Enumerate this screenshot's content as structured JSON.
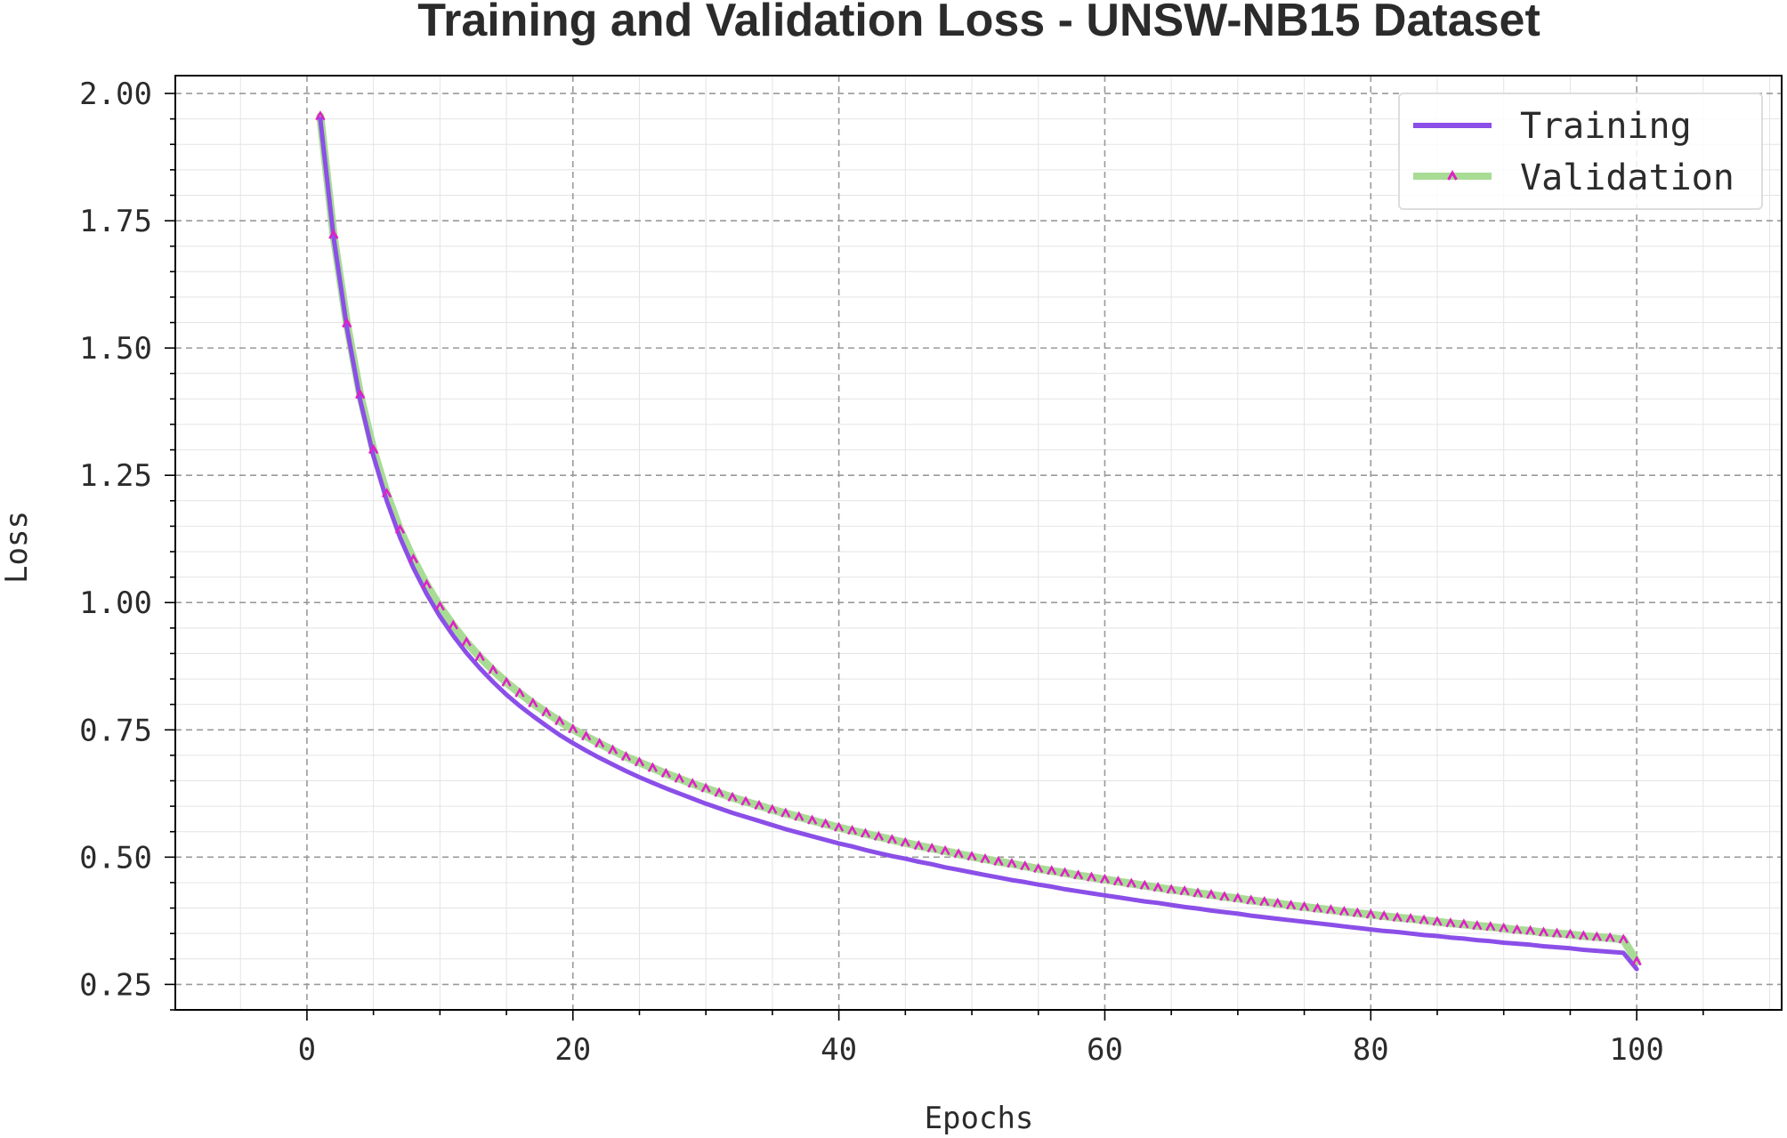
{
  "chart_data": {
    "type": "line",
    "title": "Training and Validation Loss - UNSW-NB15 Dataset",
    "xlabel": "Epochs",
    "ylabel": "Loss",
    "xlim": [
      -9.9,
      110.9
    ],
    "ylim": [
      0.2,
      2.035
    ],
    "xticks": [
      0,
      20,
      40,
      60,
      80,
      100
    ],
    "xtick_labels": [
      "0",
      "20",
      "40",
      "60",
      "80",
      "100"
    ],
    "yticks": [
      0.25,
      0.5,
      0.75,
      1.0,
      1.25,
      1.5,
      1.75,
      2.0
    ],
    "ytick_labels": [
      "0.25",
      "0.50",
      "0.75",
      "1.00",
      "1.25",
      "1.50",
      "1.75",
      "2.00"
    ],
    "grid": true,
    "minor_grid": true,
    "legend_position": "top-right",
    "x": [
      1,
      2,
      3,
      4,
      5,
      6,
      7,
      8,
      9,
      10,
      11,
      12,
      13,
      14,
      15,
      16,
      17,
      18,
      19,
      20,
      21,
      22,
      23,
      24,
      25,
      26,
      27,
      28,
      29,
      30,
      31,
      32,
      33,
      34,
      35,
      36,
      37,
      38,
      39,
      40,
      41,
      42,
      43,
      44,
      45,
      46,
      47,
      48,
      49,
      50,
      51,
      52,
      53,
      54,
      55,
      56,
      57,
      58,
      59,
      60,
      61,
      62,
      63,
      64,
      65,
      66,
      67,
      68,
      69,
      70,
      71,
      72,
      73,
      74,
      75,
      76,
      77,
      78,
      79,
      80,
      81,
      82,
      83,
      84,
      85,
      86,
      87,
      88,
      89,
      90,
      91,
      92,
      93,
      94,
      95,
      96,
      97,
      98,
      99,
      100
    ],
    "series": [
      {
        "name": "Training",
        "color": "#8b4fe8",
        "marker": "none",
        "values": [
          1.95,
          1.718,
          1.54,
          1.398,
          1.288,
          1.2,
          1.128,
          1.068,
          1.017,
          0.973,
          0.935,
          0.901,
          0.871,
          0.844,
          0.819,
          0.797,
          0.777,
          0.758,
          0.74,
          0.724,
          0.709,
          0.695,
          0.682,
          0.669,
          0.657,
          0.646,
          0.635,
          0.625,
          0.615,
          0.605,
          0.596,
          0.587,
          0.579,
          0.571,
          0.563,
          0.555,
          0.548,
          0.541,
          0.534,
          0.527,
          0.521,
          0.514,
          0.508,
          0.502,
          0.497,
          0.491,
          0.486,
          0.48,
          0.475,
          0.47,
          0.465,
          0.46,
          0.455,
          0.451,
          0.446,
          0.442,
          0.437,
          0.433,
          0.429,
          0.425,
          0.421,
          0.417,
          0.413,
          0.41,
          0.406,
          0.402,
          0.399,
          0.395,
          0.392,
          0.389,
          0.385,
          0.382,
          0.379,
          0.376,
          0.373,
          0.37,
          0.367,
          0.364,
          0.361,
          0.358,
          0.355,
          0.353,
          0.35,
          0.347,
          0.345,
          0.342,
          0.34,
          0.337,
          0.335,
          0.332,
          0.33,
          0.328,
          0.325,
          0.323,
          0.321,
          0.318,
          0.316,
          0.314,
          0.312,
          0.28
        ]
      },
      {
        "name": "Validation",
        "color": "#a8dc94",
        "marker": "^",
        "marker_color": "#e020c8",
        "values": [
          1.955,
          1.722,
          1.548,
          1.408,
          1.3,
          1.214,
          1.143,
          1.085,
          1.035,
          0.992,
          0.955,
          0.922,
          0.893,
          0.867,
          0.843,
          0.822,
          0.802,
          0.784,
          0.767,
          0.751,
          0.737,
          0.723,
          0.71,
          0.697,
          0.686,
          0.675,
          0.664,
          0.654,
          0.644,
          0.635,
          0.626,
          0.617,
          0.609,
          0.601,
          0.593,
          0.586,
          0.579,
          0.572,
          0.565,
          0.558,
          0.552,
          0.546,
          0.54,
          0.534,
          0.528,
          0.522,
          0.517,
          0.512,
          0.506,
          0.501,
          0.496,
          0.491,
          0.487,
          0.482,
          0.477,
          0.473,
          0.469,
          0.464,
          0.46,
          0.456,
          0.452,
          0.448,
          0.444,
          0.44,
          0.436,
          0.433,
          0.429,
          0.426,
          0.422,
          0.419,
          0.415,
          0.412,
          0.409,
          0.405,
          0.402,
          0.399,
          0.396,
          0.393,
          0.39,
          0.387,
          0.384,
          0.381,
          0.379,
          0.376,
          0.373,
          0.37,
          0.368,
          0.365,
          0.363,
          0.36,
          0.357,
          0.355,
          0.352,
          0.35,
          0.348,
          0.345,
          0.343,
          0.341,
          0.338,
          0.295
        ]
      }
    ]
  }
}
